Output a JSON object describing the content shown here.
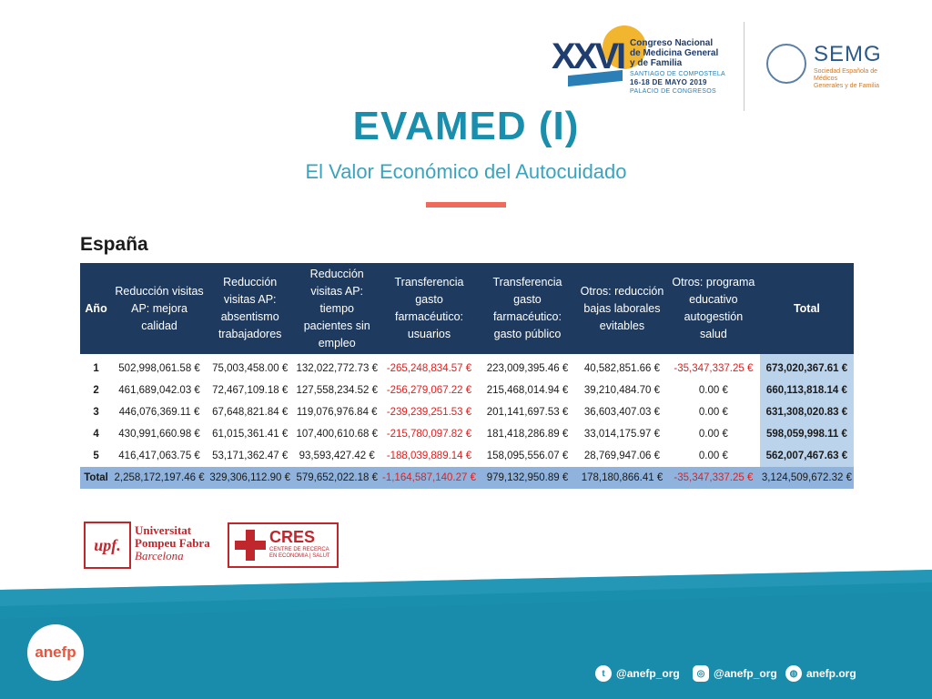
{
  "header": {
    "congress_number": "XXVI",
    "congress_lines": [
      "Congreso Nacional",
      "de Medicina General",
      "y de Familia"
    ],
    "congress_location": "SANTIAGO DE COMPOSTELA",
    "congress_dates": "16-18 DE MAYO 2019",
    "congress_venue": "PALACIO DE CONGRESOS",
    "semg_title": "SEMG",
    "semg_sub_1": "Sociedad Española de Médicos",
    "semg_sub_2": "Generales y de Familia"
  },
  "title": "EVAMED (I)",
  "subtitle": "El Valor Económico del Autocuidado",
  "region": "España",
  "table": {
    "headers": [
      "Año",
      "Reducción visitas AP: mejora calidad",
      "Reducción visitas AP: absentismo trabajadores",
      "Reducción visitas AP: tiempo pacientes sin empleo",
      "Transferencia gasto farmacéutico: usuarios",
      "Transferencia gasto farmacéutico: gasto público",
      "Otros: reducción bajas laborales evitables",
      "Otros: programa educativo autogestión salud",
      "Total"
    ],
    "rows": [
      [
        "1",
        "502,998,061.58 €",
        "75,003,458.00 €",
        "132,022,772.73 €",
        "-265,248,834.57 €",
        "223,009,395.46 €",
        "40,582,851.66 €",
        "-35,347,337.25 €",
        "673,020,367.61 €"
      ],
      [
        "2",
        "461,689,042.03 €",
        "72,467,109.18 €",
        "127,558,234.52 €",
        "-256,279,067.22 €",
        "215,468,014.94 €",
        "39,210,484.70 €",
        "0.00 €",
        "660,113,818.14 €"
      ],
      [
        "3",
        "446,076,369.11 €",
        "67,648,821.84 €",
        "119,076,976.84 €",
        "-239,239,251.53 €",
        "201,141,697.53 €",
        "36,603,407.03 €",
        "0.00 €",
        "631,308,020.83 €"
      ],
      [
        "4",
        "430,991,660.98 €",
        "61,015,361.41 €",
        "107,400,610.68 €",
        "-215,780,097.82 €",
        "181,418,286.89 €",
        "33,014,175.97 €",
        "0.00 €",
        "598,059,998.11 €"
      ],
      [
        "5",
        "416,417,063.75 €",
        "53,171,362.47 €",
        "93,593,427.42 €",
        "-188,039,889.14 €",
        "158,095,556.07 €",
        "28,769,947.06 €",
        "0.00 €",
        "562,007,467.63 €"
      ]
    ],
    "total_row": [
      "Total",
      "2,258,172,197.46 €",
      "329,306,112.90 €",
      "579,652,022.18 €",
      "-1,164,587,140.27 €",
      "979,132,950.89 €",
      "178,180,866.41 €",
      "-35,347,337.25 €",
      "3,124,509,672.32 €"
    ]
  },
  "footer_logos": {
    "upf_mark": "upf.",
    "upf_line1": "Universitat",
    "upf_line2": "Pompeu Fabra",
    "upf_line3": "Barcelona",
    "cres_name": "CRES",
    "cres_sub_1": "CENTRE DE RECERCA",
    "cres_sub_2": "EN ECONOMIA | SALUT"
  },
  "bottom": {
    "brand": "anefp",
    "twitter": "@anefp_org",
    "instagram": "@anefp_org",
    "web": "anefp.org",
    "band_color": "#1a8fad"
  },
  "colors": {
    "title": "#1a8fad",
    "accent": "#ee6a5a",
    "table_header": "#1e3a5f",
    "total_col": "#bcd3ec",
    "total_row": "#8fb3dd",
    "negative": "#e02020"
  }
}
